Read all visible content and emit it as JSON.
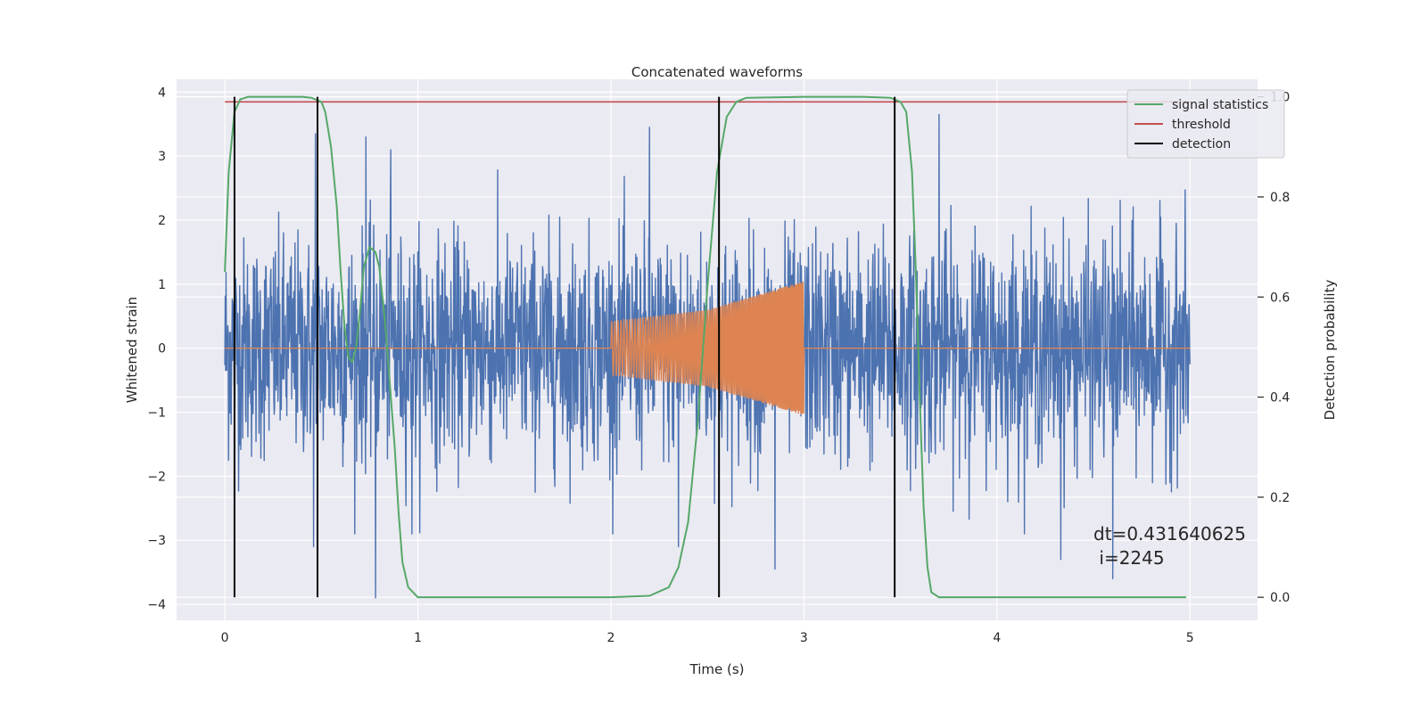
{
  "chart_data": {
    "type": "line",
    "title": "Concatenated waveforms",
    "xlabel": "Time (s)",
    "ylabel": "Whitened strain",
    "y2label": "Detection probability",
    "xlim": [
      -0.25,
      5.35
    ],
    "ylim": [
      -4.25,
      4.2
    ],
    "y2lim": [
      -0.046,
      1.035
    ],
    "x_ticks": [
      0,
      1,
      2,
      3,
      4,
      5
    ],
    "y_ticks": [
      -4,
      -3,
      -2,
      -1,
      0,
      1,
      2,
      3,
      4
    ],
    "y2_ticks": [
      0.0,
      0.2,
      0.4,
      0.6,
      0.8,
      1.0
    ],
    "x_tick_labels": [
      "0",
      "1",
      "2",
      "3",
      "4",
      "5"
    ],
    "y_tick_labels": [
      "−4",
      "−3",
      "−2",
      "−1",
      "0",
      "1",
      "2",
      "3",
      "4"
    ],
    "y2_tick_labels": [
      "0.0",
      "0.2",
      "0.4",
      "0.6",
      "0.8",
      "1.0"
    ],
    "grid": true,
    "legend_position": "top-right",
    "colors": {
      "background": "#eaeaf2",
      "grid": "#ffffff",
      "noise": "#4c72b0",
      "signal": "#dd8452",
      "statistics": "#55a868",
      "threshold": "#c44e52",
      "detection": "#000000"
    },
    "series": [
      {
        "name": "",
        "role": "whitened noise strain",
        "x_range": [
          0,
          5
        ],
        "typical_band": [
          -1.3,
          1.3
        ],
        "peaks": [
          {
            "x": 0.47,
            "y": 3.35
          },
          {
            "x": 0.73,
            "y": 3.3
          },
          {
            "x": 0.86,
            "y": 3.1
          },
          {
            "x": 2.2,
            "y": 3.45
          },
          {
            "x": 3.7,
            "y": 3.65
          },
          {
            "x": 0.78,
            "y": -3.9
          },
          {
            "x": 0.46,
            "y": -3.1
          },
          {
            "x": 0.97,
            "y": -2.9
          },
          {
            "x": 2.35,
            "y": -3.1
          },
          {
            "x": 2.85,
            "y": -3.45
          },
          {
            "x": 4.33,
            "y": -3.3
          },
          {
            "x": 4.6,
            "y": -3.6
          }
        ]
      },
      {
        "name": "",
        "role": "injected chirp signal",
        "x": [
          0,
          2,
          2.5,
          3,
          3.001,
          5
        ],
        "envelope": [
          0,
          0.42,
          0.6,
          1.05,
          0,
          0
        ],
        "chirp_start": 2,
        "chirp_end": 3
      },
      {
        "name": "signal statistics",
        "axis": "right",
        "x": [
          0,
          0.02,
          0.05,
          0.08,
          0.12,
          0.2,
          0.3,
          0.4,
          0.45,
          0.5,
          0.52,
          0.55,
          0.58,
          0.6,
          0.62,
          0.64,
          0.66,
          0.68,
          0.7,
          0.72,
          0.75,
          0.78,
          0.8,
          0.83,
          0.85,
          0.88,
          0.9,
          0.92,
          0.95,
          1.0,
          1.5,
          2.0,
          2.2,
          2.3,
          2.35,
          2.4,
          2.45,
          2.5,
          2.55,
          2.6,
          2.65,
          2.7,
          3.0,
          3.3,
          3.45,
          3.5,
          3.53,
          3.56,
          3.58,
          3.6,
          3.62,
          3.64,
          3.66,
          3.7,
          4.0,
          4.5,
          4.98
        ],
        "y": [
          0.65,
          0.85,
          0.97,
          0.995,
          1.0,
          1.0,
          1.0,
          1.0,
          0.998,
          0.99,
          0.97,
          0.9,
          0.78,
          0.65,
          0.54,
          0.48,
          0.47,
          0.5,
          0.57,
          0.66,
          0.7,
          0.69,
          0.66,
          0.55,
          0.45,
          0.3,
          0.17,
          0.07,
          0.02,
          0.0,
          0.0,
          0.0,
          0.003,
          0.02,
          0.06,
          0.15,
          0.35,
          0.62,
          0.85,
          0.96,
          0.99,
          0.998,
          1.0,
          1.0,
          0.998,
          0.99,
          0.97,
          0.85,
          0.65,
          0.4,
          0.18,
          0.06,
          0.01,
          0.0,
          0.0,
          0.0,
          0.0
        ]
      },
      {
        "name": "threshold",
        "axis": "right",
        "x": [
          0,
          5
        ],
        "y": [
          0.99,
          0.99
        ]
      },
      {
        "name": "detection",
        "axis": "right",
        "vlines": [
          0.05,
          0.48,
          2.56,
          3.47
        ],
        "ymin": 0.0,
        "ymax": 1.0
      }
    ],
    "annotations": [
      {
        "text": "dt=0.431640625",
        "x": 4.5,
        "y": -3.0
      },
      {
        "text": " i=2245",
        "x": 4.5,
        "y": -3.37
      }
    ]
  }
}
